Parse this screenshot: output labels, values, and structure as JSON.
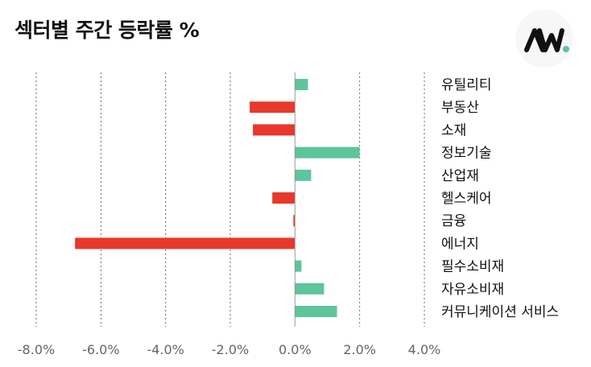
{
  "title": "섹터별 주간 등락률 %",
  "logo": {
    "text": "AW",
    "dot_color": "#5cc59a"
  },
  "colors": {
    "positive": "#5cc59a",
    "negative": "#e8382b",
    "grid": "#666666",
    "axis": "#999999"
  },
  "chart_data": {
    "type": "bar",
    "orientation": "horizontal",
    "title": "섹터별 주간 등락률 %",
    "xlabel": "",
    "ylabel": "",
    "xlim": [
      -8,
      4
    ],
    "xticks": [
      "-8.0%",
      "-6.0%",
      "-4.0%",
      "-2.0%",
      "0.0%",
      "2.0%",
      "4.0%"
    ],
    "grid": "vertical-dotted",
    "categories": [
      "유틸리티",
      "부동산",
      "소재",
      "정보기술",
      "산업재",
      "헬스케어",
      "금융",
      "에너지",
      "필수소비재",
      "자유소비재",
      "커뮤니케이션 서비스"
    ],
    "values": [
      0.4,
      -1.4,
      -1.3,
      2.0,
      0.5,
      -0.7,
      -0.05,
      -6.8,
      0.2,
      0.9,
      1.3
    ]
  }
}
